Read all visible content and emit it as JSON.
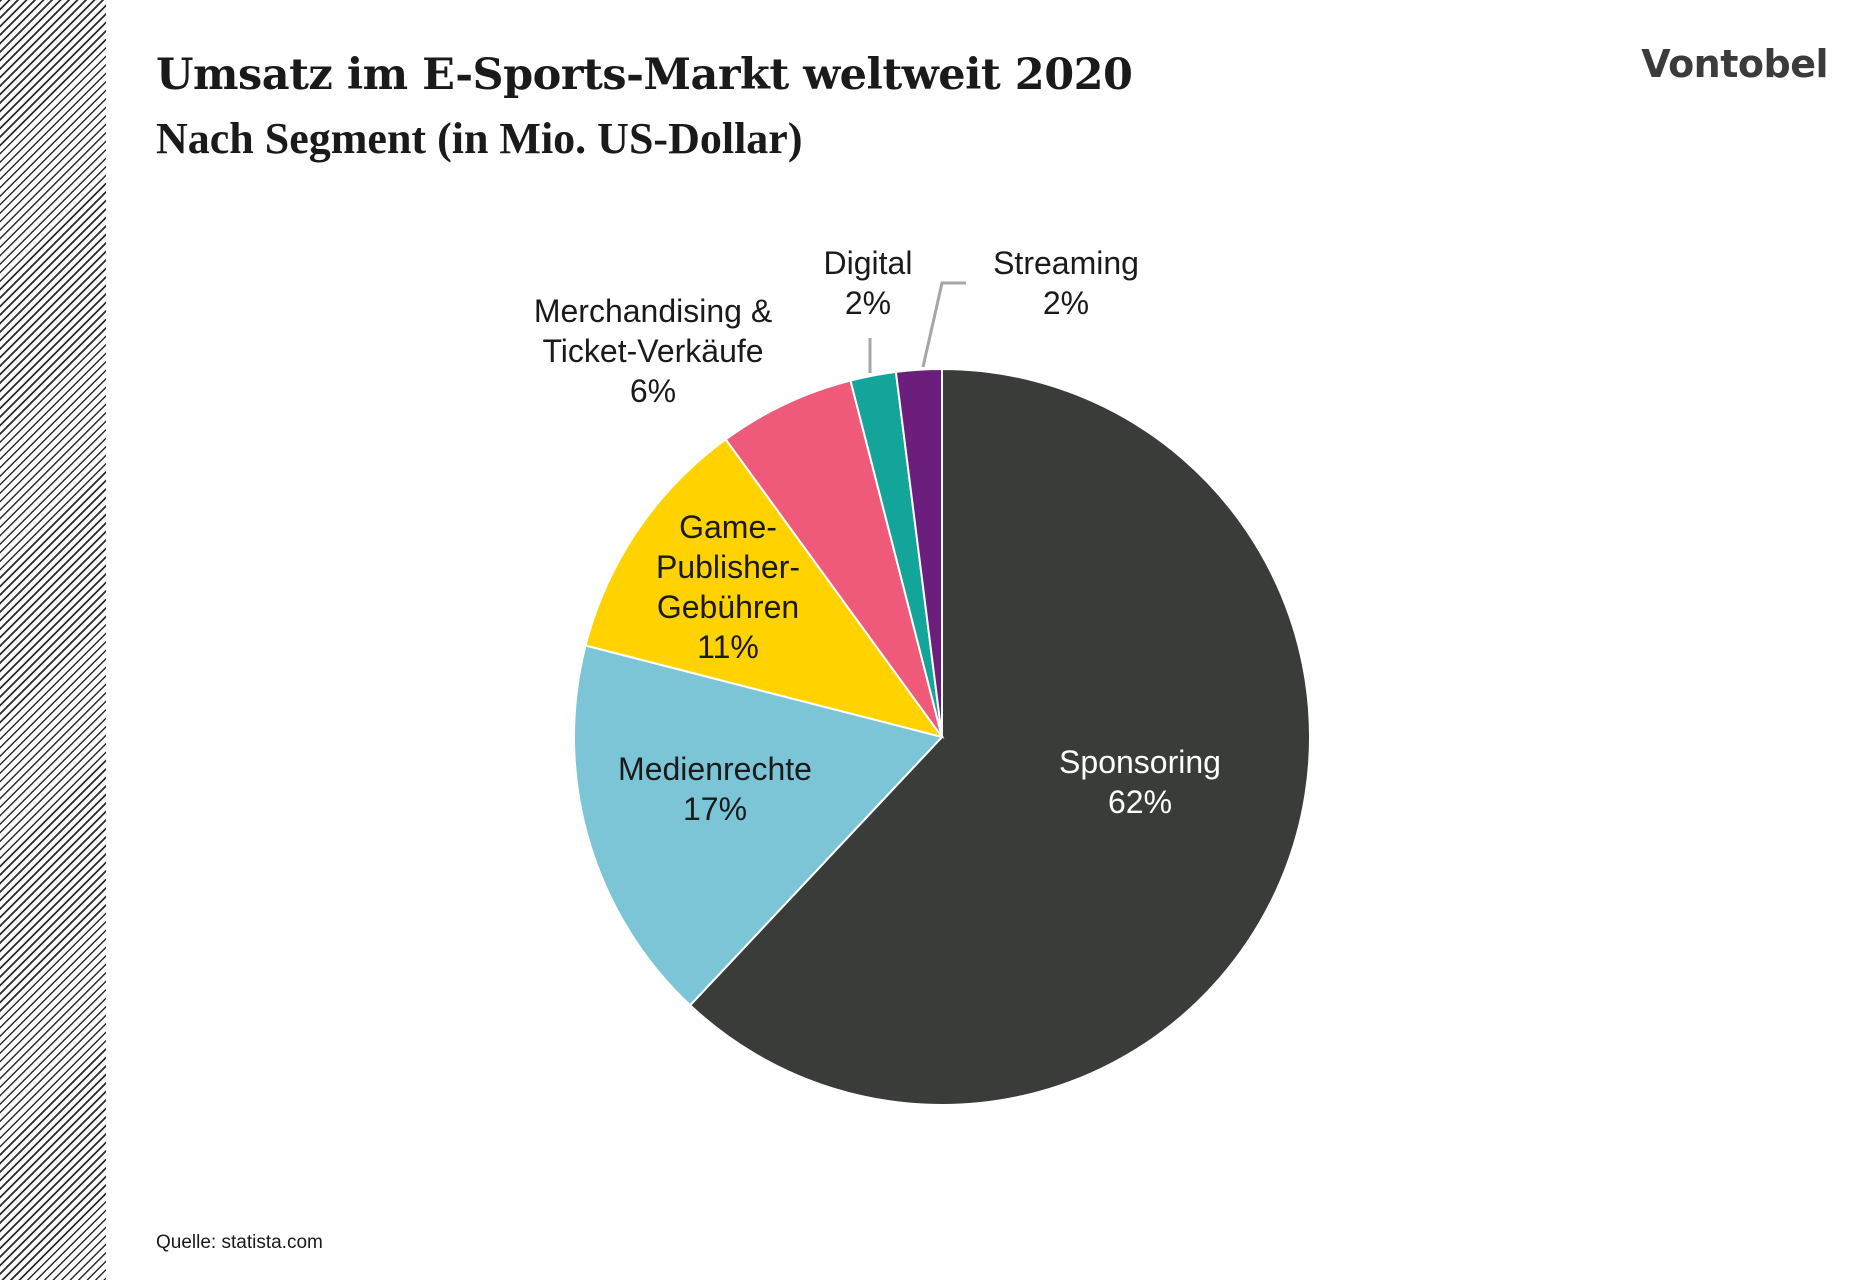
{
  "header": {
    "title": "Umsatz im E-Sports-Markt weltweit 2020",
    "subtitle": "Nach Segment (in Mio. US-Dollar)",
    "logo": "Vontobel"
  },
  "footer": {
    "source": "Quelle: statista.com"
  },
  "chart_data": {
    "type": "pie",
    "title": "Umsatz im E-Sports-Markt weltweit 2020",
    "subtitle": "Nach Segment (in Mio. US-Dollar)",
    "unit": "%",
    "start": "12 o'clock, clockwise",
    "slices": [
      {
        "label_lines": [
          "Sponsoring"
        ],
        "value": 62,
        "pct_text": "62%",
        "color": "#3a3c3a",
        "text_color": "#ffffff",
        "label_position": "inside"
      },
      {
        "label_lines": [
          "Medienrechte"
        ],
        "value": 17,
        "pct_text": "17%",
        "color": "#7bc5d6",
        "text_color": "#1a1a1a",
        "label_position": "inside"
      },
      {
        "label_lines": [
          "Game-",
          "Publisher-",
          "Gebühren"
        ],
        "value": 11,
        "pct_text": "11%",
        "color": "#ffd200",
        "text_color": "#1a1a1a",
        "label_position": "inside"
      },
      {
        "label_lines": [
          "Merchandising &",
          "Ticket-Verkäufe"
        ],
        "value": 6,
        "pct_text": "6%",
        "color": "#ef5a7a",
        "text_color": "#1a1a1a",
        "label_position": "outside"
      },
      {
        "label_lines": [
          "Digital"
        ],
        "value": 2,
        "pct_text": "2%",
        "color": "#13a59a",
        "text_color": "#1a1a1a",
        "label_position": "outside-leader"
      },
      {
        "label_lines": [
          "Streaming"
        ],
        "value": 2,
        "pct_text": "2%",
        "color": "#6b1e7c",
        "text_color": "#1a1a1a",
        "label_position": "outside-leader"
      }
    ]
  }
}
